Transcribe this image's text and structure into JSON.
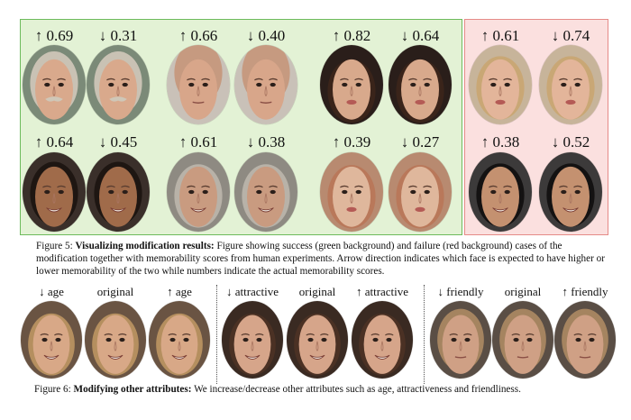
{
  "figure5": {
    "success_pairs": [
      {
        "left_score": "↑ 0.69",
        "right_score": "↓ 0.31",
        "left_face": "older-man-mustache-face",
        "right_face": "older-man-mustache-face"
      },
      {
        "left_score": "↑ 0.66",
        "right_score": "↓ 0.40",
        "left_face": "bald-man-face",
        "right_face": "bald-man-face"
      },
      {
        "left_score": "↑ 0.82",
        "right_score": "↓ 0.64",
        "left_face": "dark-haired-woman-face",
        "right_face": "dark-haired-woman-face"
      },
      {
        "left_score": "↑ 0.64",
        "right_score": "↓ 0.45",
        "left_face": "smiling-man-face",
        "right_face": "smiling-man-face"
      },
      {
        "left_score": "↑ 0.61",
        "right_score": "↓ 0.38",
        "left_face": "older-woman-face",
        "right_face": "older-woman-face"
      },
      {
        "left_score": "↑ 0.39",
        "right_score": "↓ 0.27",
        "left_face": "red-haired-woman-face",
        "right_face": "red-haired-woman-face"
      }
    ],
    "failure_pairs": [
      {
        "left_score": "↑ 0.61",
        "right_score": "↓ 0.74",
        "left_face": "blonde-woman-face",
        "right_face": "blonde-woman-face"
      },
      {
        "left_score": "↑ 0.38",
        "right_score": "↓ 0.52",
        "left_face": "asian-man-face",
        "right_face": "asian-man-face"
      }
    ],
    "caption_label": "Figure 5:",
    "caption_title": "Visualizing modification results:",
    "caption_text": "Figure showing success (green background) and failure (red background) cases of the modification together with memorability scores from human experiments.  Arrow direction indicates which face is expected to have higher or lower memorability of the two while numbers indicate the actual memorability scores."
  },
  "figure6": {
    "groups": [
      {
        "labels": [
          "↓ age",
          "original",
          "↑ age"
        ],
        "face": "woman-blonde-face"
      },
      {
        "labels": [
          "↓ attractive",
          "original",
          "↑ attractive"
        ],
        "face": "woman-brunette-face"
      },
      {
        "labels": [
          "↓ friendly",
          "original",
          "↑ friendly"
        ],
        "face": "young-man-face"
      }
    ],
    "caption_label": "Figure 6:",
    "caption_title": "Modifying other attributes:",
    "caption_text": "We increase/decrease other attributes such as age, attractiveness and friendliness."
  },
  "colors": {
    "success_bg": "#e3f2d5",
    "success_border": "#6dbb5c",
    "failure_bg": "#fbe0df",
    "failure_border": "#e58b88"
  }
}
